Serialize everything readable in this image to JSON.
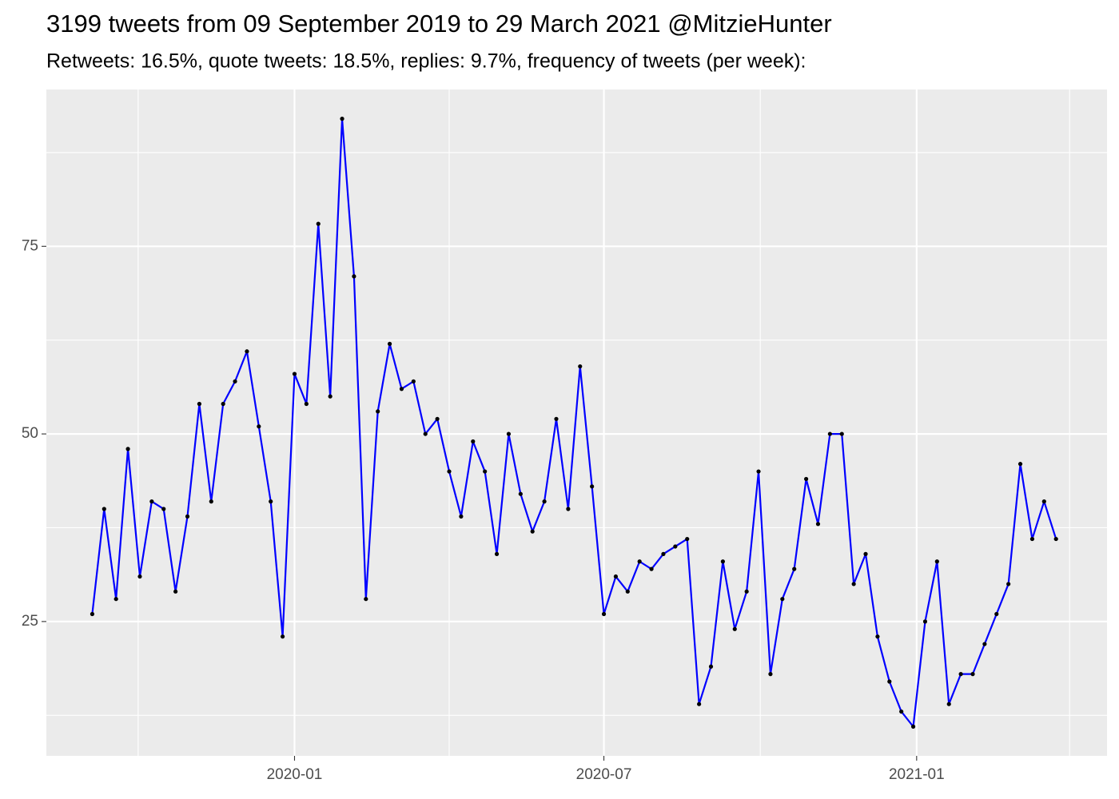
{
  "chart_data": {
    "type": "line",
    "title": "3199 tweets from 09 September 2019 to 29 March 2021 @MitzieHunter",
    "subtitle": "Retweets: 16.5%, quote tweets: 18.5%, replies: 9.7%, frequency of tweets (per week):",
    "x": [
      "2019-09-04",
      "2019-09-11",
      "2019-09-18",
      "2019-09-25",
      "2019-10-02",
      "2019-10-09",
      "2019-10-16",
      "2019-10-23",
      "2019-10-30",
      "2019-11-06",
      "2019-11-13",
      "2019-11-20",
      "2019-11-27",
      "2019-12-04",
      "2019-12-11",
      "2019-12-18",
      "2019-12-25",
      "2020-01-01",
      "2020-01-08",
      "2020-01-15",
      "2020-01-22",
      "2020-01-29",
      "2020-02-05",
      "2020-02-12",
      "2020-02-19",
      "2020-02-26",
      "2020-03-04",
      "2020-03-11",
      "2020-03-18",
      "2020-03-25",
      "2020-04-01",
      "2020-04-08",
      "2020-04-15",
      "2020-04-22",
      "2020-04-29",
      "2020-05-06",
      "2020-05-13",
      "2020-05-20",
      "2020-05-27",
      "2020-06-03",
      "2020-06-10",
      "2020-06-17",
      "2020-06-24",
      "2020-07-01",
      "2020-07-08",
      "2020-07-15",
      "2020-07-22",
      "2020-07-29",
      "2020-08-05",
      "2020-08-12",
      "2020-08-19",
      "2020-08-26",
      "2020-09-02",
      "2020-09-09",
      "2020-09-16",
      "2020-09-23",
      "2020-09-30",
      "2020-10-07",
      "2020-10-14",
      "2020-10-21",
      "2020-10-28",
      "2020-11-04",
      "2020-11-11",
      "2020-11-18",
      "2020-11-25",
      "2020-12-02",
      "2020-12-09",
      "2020-12-16",
      "2020-12-23",
      "2020-12-30",
      "2021-01-06",
      "2021-01-13",
      "2021-01-20",
      "2021-01-27",
      "2021-02-03",
      "2021-02-10",
      "2021-02-17",
      "2021-02-24",
      "2021-03-03",
      "2021-03-10",
      "2021-03-17",
      "2021-03-24"
    ],
    "series": [
      {
        "color": "#0000ff",
        "point_color": "#000000",
        "values": [
          26,
          40,
          28,
          48,
          31,
          41,
          40,
          29,
          39,
          54,
          41,
          54,
          57,
          61,
          51,
          41,
          23,
          58,
          54,
          78,
          55,
          92,
          71,
          28,
          53,
          62,
          56,
          57,
          50,
          52,
          45,
          39,
          49,
          45,
          34,
          50,
          42,
          37,
          41,
          52,
          40,
          59,
          43,
          26,
          31,
          29,
          33,
          32,
          34,
          35,
          36,
          14,
          19,
          33,
          24,
          29,
          45,
          18,
          28,
          32,
          44,
          38,
          50,
          50,
          30,
          34,
          23,
          17,
          13,
          11,
          25,
          33,
          14,
          18,
          18,
          22,
          26,
          30,
          46,
          36,
          41,
          36
        ]
      }
    ],
    "xlim": [
      "2019-08-08",
      "2021-04-23"
    ],
    "xticks": [
      {
        "value": "2020-01-01",
        "label": "2020-01"
      },
      {
        "value": "2020-07-01",
        "label": "2020-07"
      },
      {
        "value": "2021-01-01",
        "label": "2021-01"
      }
    ],
    "xminor": [
      "2019-10-01",
      "2020-04-01",
      "2020-10-01",
      "2021-04-01"
    ],
    "ylim": [
      7.1,
      95.9
    ],
    "yticks": [
      25,
      50,
      75
    ],
    "yminor": [
      12.5,
      37.5,
      62.5,
      87.5
    ],
    "grid": true
  }
}
